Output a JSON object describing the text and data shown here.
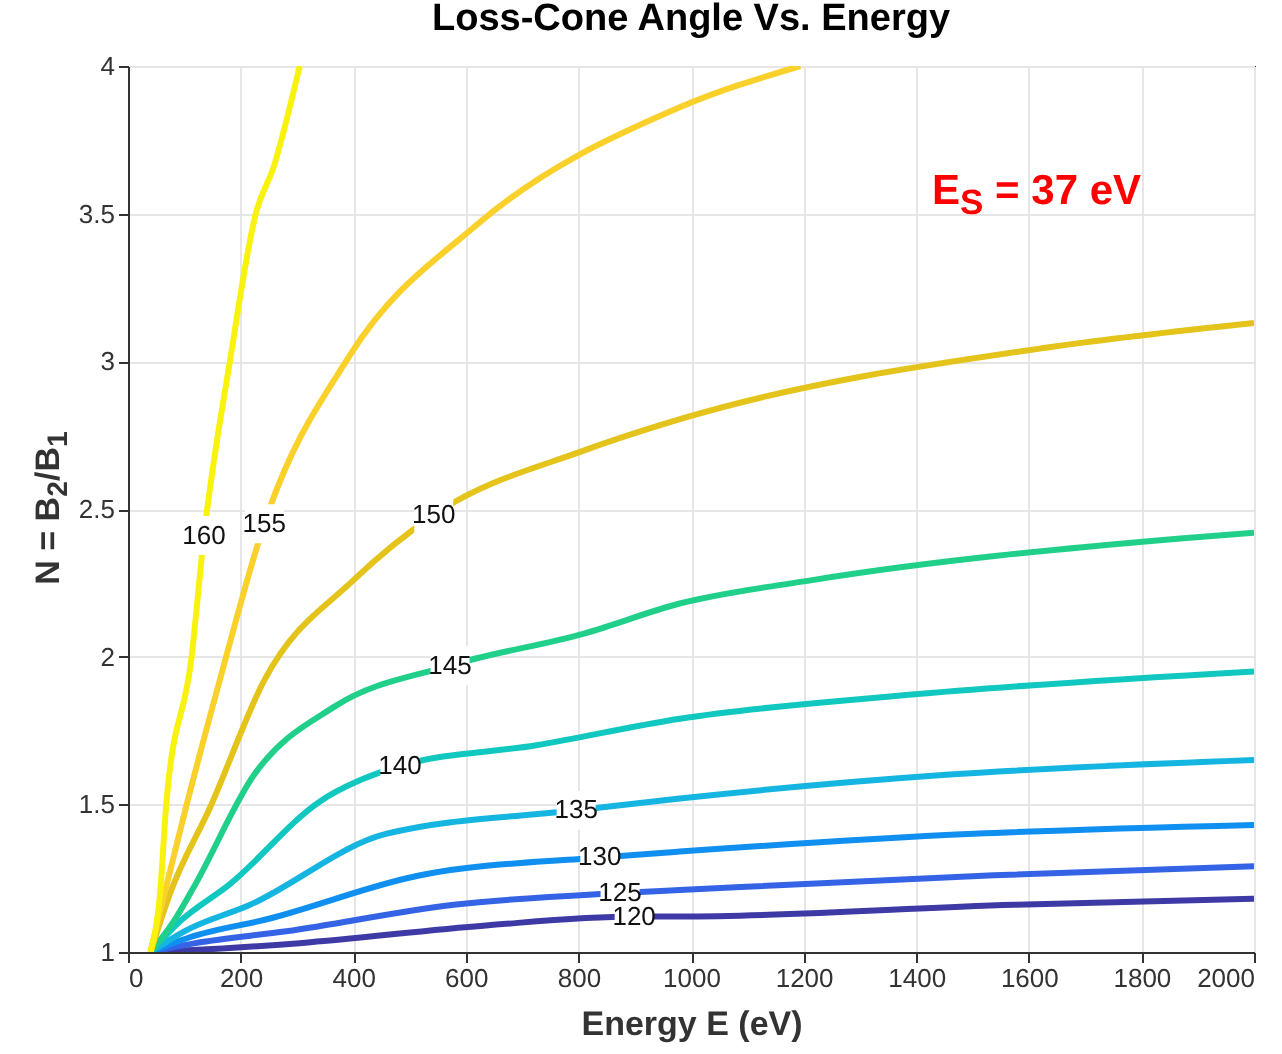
{
  "chart_data": {
    "type": "line",
    "title": "Loss-Cone Angle Vs. Energy",
    "xlabel": "Energy E (eV)",
    "ylabel": "N = B$_{2}$/B$_{1}$",
    "annotations": [
      "E$_{S}$ = 37 eV"
    ],
    "xlim": [
      0,
      2000
    ],
    "xticks": [
      0,
      200,
      400,
      600,
      800,
      1000,
      1200,
      1400,
      1600,
      1800,
      2000
    ],
    "ylim": [
      1,
      4
    ],
    "yticks": [
      1,
      1.5,
      2,
      2.5,
      3,
      3.5,
      4
    ],
    "grid": true,
    "legend": false,
    "series": [
      {
        "name": "120",
        "color": "#3e3aa5",
        "x": [
          40,
          150,
          305,
          636,
          899,
          980,
          1574,
          2000
        ],
        "values": [
          1,
          1.01,
          1.03,
          1.09,
          1.12,
          1.12,
          1.16,
          1.18
        ]
      },
      {
        "name": "125",
        "color": "#3463e6",
        "x": [
          40,
          120,
          281,
          579,
          874,
          980,
          1538,
          2000
        ],
        "values": [
          1,
          1.03,
          1.07,
          1.16,
          1.2,
          1.21,
          1.26,
          1.29
        ]
      },
      {
        "name": "130",
        "color": "#0f8ff0",
        "x": [
          40,
          110,
          245,
          519,
          838,
          980,
          1503,
          2000
        ],
        "values": [
          1,
          1.05,
          1.11,
          1.26,
          1.32,
          1.34,
          1.4,
          1.43
        ]
      },
      {
        "name": "135",
        "color": "#14b5e0",
        "x": [
          40,
          100,
          217,
          458,
          796,
          980,
          1453,
          2000
        ],
        "values": [
          1,
          1.07,
          1.16,
          1.4,
          1.48,
          1.52,
          1.6,
          1.65
        ]
      },
      {
        "name": "140",
        "color": "#10c8c0",
        "x": [
          40,
          90,
          181,
          341,
          483,
          725,
          980,
          1382,
          2000
        ],
        "values": [
          1,
          1.1,
          1.23,
          1.51,
          1.63,
          1.7,
          1.79,
          1.87,
          1.95
        ]
      },
      {
        "name": "145",
        "color": "#20d08a",
        "x": [
          40,
          80,
          117,
          224,
          366,
          572,
          813,
          980,
          1218,
          1869,
          2000
        ],
        "values": [
          1,
          1.1,
          1.22,
          1.6,
          1.83,
          1.97,
          2.08,
          2.18,
          2.26,
          2.4,
          2.42
        ]
      },
      {
        "name": "150",
        "color": "#e4c31a",
        "x": [
          40,
          75,
          146,
          242,
          401,
          543,
          813,
          991,
          1645,
          2000
        ],
        "values": [
          1,
          1.2,
          1.49,
          1.92,
          2.26,
          2.48,
          2.7,
          2.81,
          3.05,
          3.13
        ]
      },
      {
        "name": "155",
        "color": "#fad02a",
        "x": [
          40,
          65,
          103,
          163,
          242,
          394,
          618,
          980,
          1194
        ],
        "values": [
          1,
          1.2,
          1.49,
          1.92,
          2.45,
          3.02,
          3.46,
          3.86,
          4
        ]
      },
      {
        "name": "160",
        "color": "#f9f20e",
        "x": [
          40,
          57,
          68,
          113,
          135,
          181,
          227,
          259,
          305
        ],
        "values": [
          1,
          1.2,
          1.5,
          2,
          2.41,
          3,
          3.5,
          3.66,
          4
        ]
      }
    ]
  }
}
